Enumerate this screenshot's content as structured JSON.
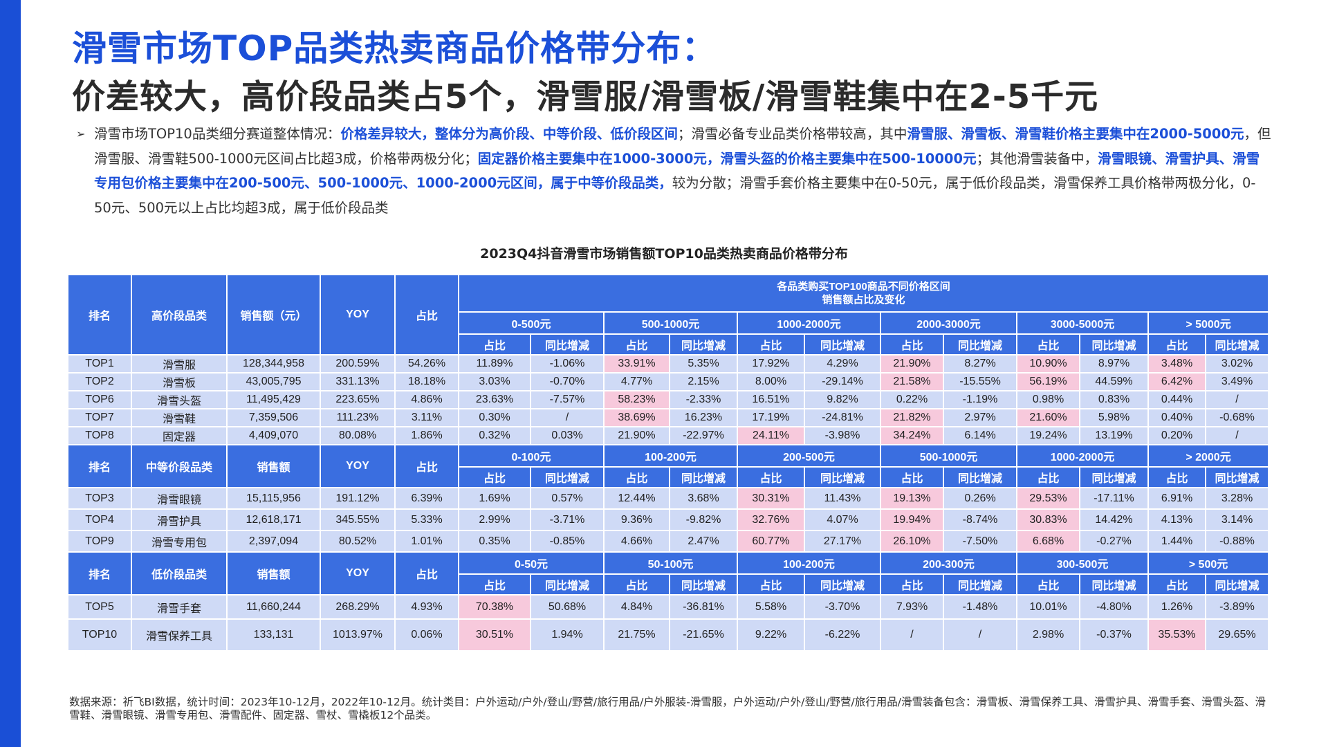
{
  "titles": {
    "line1": "滑雪市场TOP品类热卖商品价格带分布：",
    "line2": "价差较大，高价段品类占5个，滑雪服/滑雪板/滑雪鞋集中在2-5千元"
  },
  "summary": {
    "bullet": "➢",
    "segments": [
      {
        "text": "滑雪市场TOP10品类细分赛道整体情况：",
        "hl": false
      },
      {
        "text": "价格差异较大，整体分为高价段、中等价段、低价段区间",
        "hl": true
      },
      {
        "text": "；滑雪必备专业品类价格带较高，其中",
        "hl": false
      },
      {
        "text": "滑雪服、滑雪板、滑雪鞋价格主要集中在2000-5000元",
        "hl": true
      },
      {
        "text": "，但滑雪服、滑雪鞋500-1000元区间占比超3成，价格带两极分化；",
        "hl": false
      },
      {
        "text": "固定器价格主要集中在1000-3000元，滑雪头盔的价格主要集中在500-10000元",
        "hl": true
      },
      {
        "text": "；其他滑雪装备中，",
        "hl": false
      },
      {
        "text": "滑雪眼镜、滑雪护具、滑雪专用包价格主要集中在200-500元、500-1000元、1000-2000元区间，属于中等价段品类，",
        "hl": true
      },
      {
        "text": "较为分散；滑雪手套价格主要集中在0-50元，属于低价段品类，滑雪保养工具价格带两极分化，0-50元、500元以上占比均超3成，属于低价段品类",
        "hl": false
      }
    ]
  },
  "table": {
    "caption": "2023Q4抖音滑雪市场销售额TOP10品类热卖商品价格带分布",
    "top_header": "各品类购买TOP100商品不同价格区间\n销售额占比及变化",
    "sub_labels": [
      "占比",
      "同比增减"
    ],
    "groups": [
      {
        "headers": [
          "排名",
          "高价段品类",
          "销售额（元）",
          "YOY",
          "占比"
        ],
        "ranges": [
          "0-500元",
          "500-1000元",
          "1000-2000元",
          "2000-3000元",
          "3000-5000元",
          "> 5000元"
        ],
        "rows": [
          {
            "cells": [
              "TOP1",
              "滑雪服",
              "128,344,958",
              "200.59%",
              "54.26%",
              "11.89%",
              "-1.06%",
              "33.91%",
              "5.35%",
              "17.92%",
              "4.29%",
              "21.90%",
              "8.27%",
              "10.90%",
              "8.97%",
              "3.48%",
              "3.02%"
            ],
            "pink": [
              7,
              11,
              13,
              15
            ]
          },
          {
            "cells": [
              "TOP2",
              "滑雪板",
              "43,005,795",
              "331.13%",
              "18.18%",
              "3.03%",
              "-0.70%",
              "4.77%",
              "2.15%",
              "8.00%",
              "-29.14%",
              "21.58%",
              "-15.55%",
              "56.19%",
              "44.59%",
              "6.42%",
              "3.49%"
            ],
            "pink": [
              11,
              13,
              15
            ]
          },
          {
            "cells": [
              "TOP6",
              "滑雪头盔",
              "11,495,429",
              "223.65%",
              "4.86%",
              "23.63%",
              "-7.57%",
              "58.23%",
              "-2.33%",
              "16.51%",
              "9.82%",
              "0.22%",
              "-1.19%",
              "0.98%",
              "0.83%",
              "0.44%",
              "/"
            ],
            "pink": [
              7
            ]
          },
          {
            "cells": [
              "TOP7",
              "滑雪鞋",
              "7,359,506",
              "111.23%",
              "3.11%",
              "0.30%",
              "/",
              "38.69%",
              "16.23%",
              "17.19%",
              "-24.81%",
              "21.82%",
              "2.97%",
              "21.60%",
              "5.98%",
              "0.40%",
              "-0.68%"
            ],
            "pink": [
              7,
              11,
              13
            ]
          },
          {
            "cells": [
              "TOP8",
              "固定器",
              "4,409,070",
              "80.08%",
              "1.86%",
              "0.32%",
              "0.03%",
              "21.90%",
              "-22.97%",
              "24.11%",
              "-3.98%",
              "34.24%",
              "6.14%",
              "19.24%",
              "13.19%",
              "0.20%",
              "/"
            ],
            "pink": [
              9,
              11
            ]
          }
        ]
      },
      {
        "headers": [
          "排名",
          "中等价段品类",
          "销售额",
          "YOY",
          "占比"
        ],
        "ranges": [
          "0-100元",
          "100-200元",
          "200-500元",
          "500-1000元",
          "1000-2000元",
          "> 2000元"
        ],
        "rows": [
          {
            "cells": [
              "TOP3",
              "滑雪眼镜",
              "15,115,956",
              "191.12%",
              "6.39%",
              "1.69%",
              "0.57%",
              "12.44%",
              "3.68%",
              "30.31%",
              "11.43%",
              "19.13%",
              "0.26%",
              "29.53%",
              "-17.11%",
              "6.91%",
              "3.28%"
            ],
            "pink": [
              9,
              11,
              13
            ]
          },
          {
            "cells": [
              "TOP4",
              "滑雪护具",
              "12,618,171",
              "345.55%",
              "5.33%",
              "2.99%",
              "-3.71%",
              "9.36%",
              "-9.82%",
              "32.76%",
              "4.07%",
              "19.94%",
              "-8.74%",
              "30.83%",
              "14.42%",
              "4.13%",
              "3.14%"
            ],
            "pink": [
              9,
              11,
              13
            ]
          },
          {
            "cells": [
              "TOP9",
              "滑雪专用包",
              "2,397,094",
              "80.52%",
              "1.01%",
              "0.35%",
              "-0.85%",
              "4.66%",
              "2.47%",
              "60.77%",
              "27.17%",
              "26.10%",
              "-7.50%",
              "6.68%",
              "-0.27%",
              "1.44%",
              "-0.88%"
            ],
            "pink": [
              9,
              11,
              13
            ]
          }
        ]
      },
      {
        "headers": [
          "排名",
          "低价段品类",
          "销售额",
          "YOY",
          "占比"
        ],
        "ranges": [
          "0-50元",
          "50-100元",
          "100-200元",
          "200-300元",
          "300-500元",
          "> 500元"
        ],
        "rows": [
          {
            "cells": [
              "TOP5",
              "滑雪手套",
              "11,660,244",
              "268.29%",
              "4.93%",
              "70.38%",
              "50.68%",
              "4.84%",
              "-36.81%",
              "5.58%",
              "-3.70%",
              "7.93%",
              "-1.48%",
              "10.01%",
              "-4.80%",
              "1.26%",
              "-3.89%"
            ],
            "pink": [
              5
            ]
          },
          {
            "cells": [
              "TOP10",
              "滑雪保养工具",
              "133,131",
              "1013.97%",
              "0.06%",
              "30.51%",
              "1.94%",
              "21.75%",
              "-21.65%",
              "9.22%",
              "-6.22%",
              "/",
              "/",
              "2.98%",
              "-0.37%",
              "35.53%",
              "29.65%"
            ],
            "pink": [
              5,
              15
            ]
          }
        ]
      }
    ]
  },
  "footnote": "数据来源：祈飞BI数据，统计时间：2023年10-12月，2022年10-12月。统计类目：户外运动/户外/登山/野营/旅行用品/户外服装-滑雪服，户外运动/户外/登山/野营/旅行用品/滑雪装备包含：滑雪板、滑雪保养工具、滑雪护具、滑雪手套、滑雪头盔、滑雪鞋、滑雪眼镜、滑雪专用包、滑雪配件、固定器、雪杖、雪橇板12个品类。",
  "colors": {
    "accent": "#1b4fd8",
    "header_blue": "#3a6ee0",
    "cell_light_blue": "#cfdaf6",
    "highlight_pink": "#f7c9dc"
  }
}
